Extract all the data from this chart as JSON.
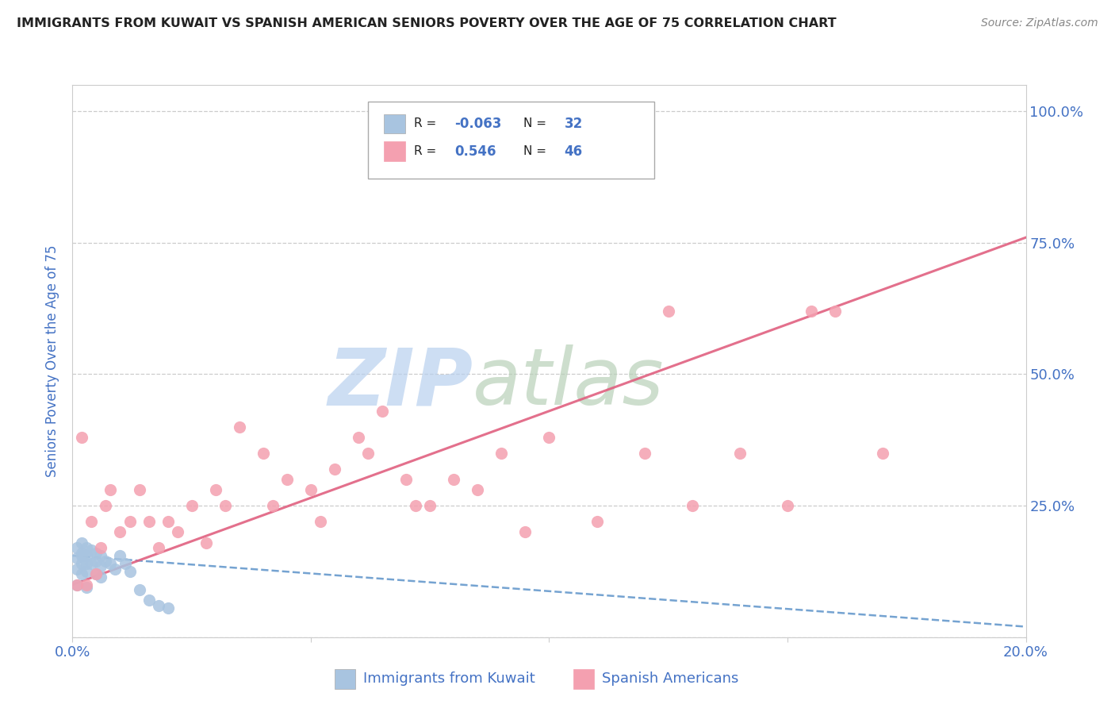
{
  "title": "IMMIGRANTS FROM KUWAIT VS SPANISH AMERICAN SENIORS POVERTY OVER THE AGE OF 75 CORRELATION CHART",
  "source": "Source: ZipAtlas.com",
  "ylabel": "Seniors Poverty Over the Age of 75",
  "legend_bottom": [
    "Immigrants from Kuwait",
    "Spanish Americans"
  ],
  "r_kuwait": -0.063,
  "n_kuwait": 32,
  "r_spanish": 0.546,
  "n_spanish": 46,
  "color_kuwait": "#a8c4e0",
  "color_spanish": "#f4a0b0",
  "trendline_kuwait_color": "#6699cc",
  "trendline_spanish_color": "#e06080",
  "watermark_zip": "ZIP",
  "watermark_atlas": "atlas",
  "watermark_color_zip": "#b8d0ee",
  "watermark_color_atlas": "#b8d0b8",
  "background_color": "#ffffff",
  "title_color": "#222222",
  "source_color": "#888888",
  "axis_label_color": "#4472c4",
  "legend_text_color": "#4472c4",
  "xlim": [
    0.0,
    0.2
  ],
  "ylim": [
    0.0,
    1.05
  ],
  "xticks": [
    0.0,
    0.05,
    0.1,
    0.15,
    0.2
  ],
  "xticklabels": [
    "0.0%",
    "",
    "",
    "",
    "20.0%"
  ],
  "yticks": [
    0.0,
    0.25,
    0.5,
    0.75,
    1.0
  ],
  "yticklabels_right": [
    "",
    "25.0%",
    "50.0%",
    "75.0%",
    "100.0%"
  ],
  "kuwait_points_x": [
    0.001,
    0.001,
    0.001,
    0.001,
    0.002,
    0.002,
    0.002,
    0.002,
    0.002,
    0.003,
    0.003,
    0.003,
    0.003,
    0.003,
    0.004,
    0.004,
    0.005,
    0.005,
    0.005,
    0.006,
    0.006,
    0.006,
    0.007,
    0.008,
    0.009,
    0.01,
    0.011,
    0.012,
    0.014,
    0.016,
    0.018,
    0.02
  ],
  "kuwait_points_y": [
    0.17,
    0.15,
    0.13,
    0.1,
    0.18,
    0.16,
    0.155,
    0.14,
    0.12,
    0.17,
    0.155,
    0.14,
    0.125,
    0.095,
    0.165,
    0.14,
    0.16,
    0.145,
    0.12,
    0.155,
    0.135,
    0.115,
    0.145,
    0.14,
    0.13,
    0.155,
    0.14,
    0.125,
    0.09,
    0.07,
    0.06,
    0.055
  ],
  "spanish_points_x": [
    0.001,
    0.002,
    0.003,
    0.004,
    0.005,
    0.006,
    0.007,
    0.008,
    0.01,
    0.012,
    0.014,
    0.016,
    0.018,
    0.02,
    0.025,
    0.03,
    0.035,
    0.04,
    0.045,
    0.05,
    0.055,
    0.06,
    0.065,
    0.07,
    0.075,
    0.08,
    0.085,
    0.09,
    0.095,
    0.1,
    0.11,
    0.12,
    0.13,
    0.14,
    0.15,
    0.16,
    0.17,
    0.022,
    0.028,
    0.032,
    0.042,
    0.052,
    0.062,
    0.072,
    0.155,
    0.125
  ],
  "spanish_points_y": [
    0.1,
    0.38,
    0.1,
    0.22,
    0.12,
    0.17,
    0.25,
    0.28,
    0.2,
    0.22,
    0.28,
    0.22,
    0.17,
    0.22,
    0.25,
    0.28,
    0.4,
    0.35,
    0.3,
    0.28,
    0.32,
    0.38,
    0.43,
    0.3,
    0.25,
    0.3,
    0.28,
    0.35,
    0.2,
    0.38,
    0.22,
    0.35,
    0.25,
    0.35,
    0.25,
    0.62,
    0.35,
    0.2,
    0.18,
    0.25,
    0.25,
    0.22,
    0.35,
    0.25,
    0.62,
    0.62
  ],
  "kuwait_trend_x": [
    0.0,
    0.2
  ],
  "kuwait_trend_y": [
    0.155,
    0.02
  ],
  "spanish_trend_x": [
    0.0,
    0.2
  ],
  "spanish_trend_y": [
    0.1,
    0.76
  ]
}
